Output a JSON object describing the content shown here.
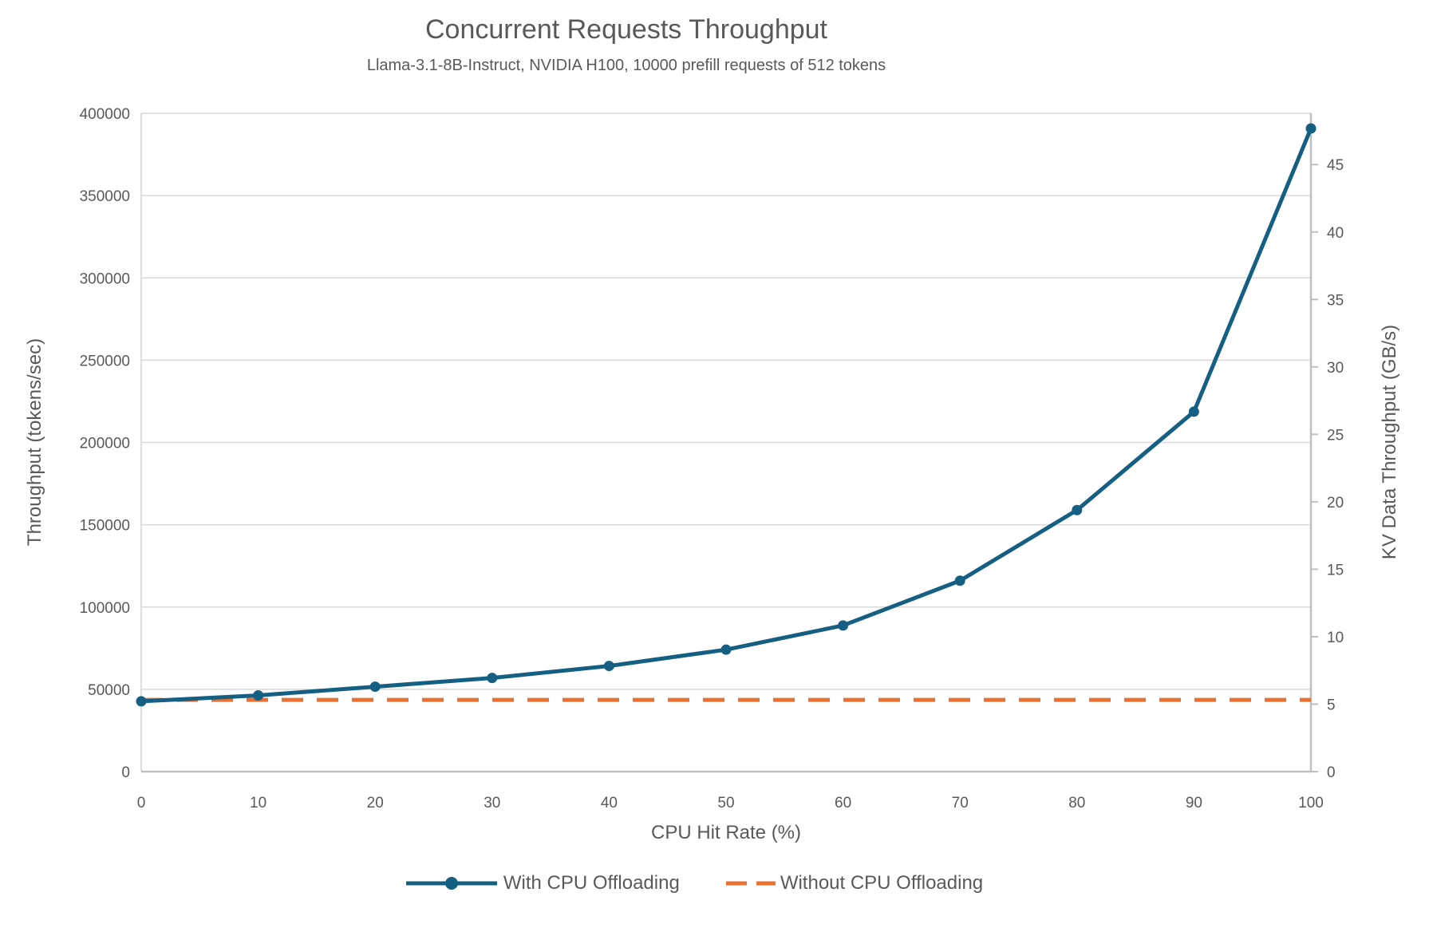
{
  "page": {
    "background": "#ffffff"
  },
  "chart_data": {
    "type": "line",
    "title": "Concurrent Requests Throughput",
    "subtitle": "Llama-3.1-8B-Instruct, NVIDIA H100, 10000 prefill requests of 512 tokens",
    "xlabel": "CPU Hit Rate (%)",
    "ylabel_left": "Throughput (tokens/sec)",
    "ylabel_right": "KV Data Throughput (GB/s)",
    "x": [
      0,
      10,
      20,
      30,
      40,
      50,
      60,
      70,
      80,
      90,
      100
    ],
    "left_axis": {
      "min": 0,
      "max": 400000,
      "tick_step": 50000,
      "tick_labels": [
        "0",
        "50000",
        "100000",
        "150000",
        "200000",
        "250000",
        "300000",
        "350000",
        "400000"
      ]
    },
    "right_axis": {
      "min": 0,
      "max": 48.8,
      "tick_step": 5,
      "tick_max": 45,
      "tick_labels": [
        "0",
        "5",
        "10",
        "15",
        "20",
        "25",
        "30",
        "35",
        "40",
        "45"
      ]
    },
    "x_tick_labels": [
      "0",
      "10",
      "20",
      "30",
      "40",
      "50",
      "60",
      "70",
      "80",
      "90",
      "100"
    ],
    "series": [
      {
        "name": "With CPU Offloading",
        "color": "#156082",
        "style": "solid",
        "marker": "circle",
        "values": [
          42700,
          46300,
          51600,
          56900,
          64200,
          74100,
          88800,
          116000,
          158900,
          218700,
          390800
        ]
      },
      {
        "name": "Without CPU Offloading",
        "color": "#E97132",
        "style": "dashed",
        "marker": "none",
        "values": [
          43600,
          43600,
          43600,
          43600,
          43600,
          43600,
          43600,
          43600,
          43600,
          43600,
          43600
        ]
      }
    ],
    "legend_position": "bottom",
    "grid": "horizontal",
    "grid_color": "#D9D9D9",
    "axis_line_color": "#BFBFBF",
    "text_color": "#595959"
  }
}
